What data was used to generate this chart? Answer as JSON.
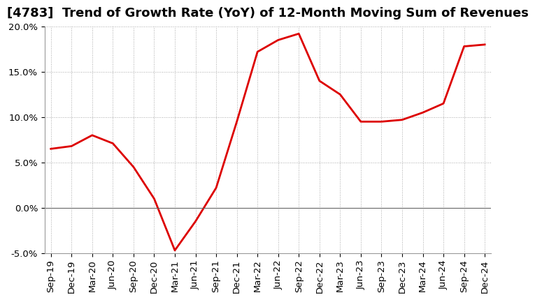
{
  "title": "[4783]  Trend of Growth Rate (YoY) of 12-Month Moving Sum of Revenues",
  "x_labels": [
    "Sep-19",
    "Dec-19",
    "Mar-20",
    "Jun-20",
    "Sep-20",
    "Dec-20",
    "Mar-21",
    "Jun-21",
    "Sep-21",
    "Dec-21",
    "Mar-22",
    "Jun-22",
    "Sep-22",
    "Dec-22",
    "Mar-23",
    "Jun-23",
    "Sep-23",
    "Dec-23",
    "Mar-24",
    "Jun-24",
    "Sep-24",
    "Dec-24"
  ],
  "y_values": [
    0.065,
    0.068,
    0.08,
    0.071,
    0.045,
    0.01,
    -0.047,
    -0.015,
    0.022,
    0.095,
    0.172,
    0.185,
    0.192,
    0.14,
    0.125,
    0.095,
    0.095,
    0.097,
    0.105,
    0.115,
    0.178,
    0.18
  ],
  "line_color": "#dd0000",
  "line_width": 2.0,
  "ylim": [
    -0.05,
    0.2
  ],
  "yticks": [
    -0.05,
    0.0,
    0.05,
    0.1,
    0.15,
    0.2
  ],
  "grid_color": "#aaaaaa",
  "background_color": "#ffffff",
  "zero_line_color": "#666666",
  "title_fontsize": 13,
  "tick_fontsize": 9.5
}
